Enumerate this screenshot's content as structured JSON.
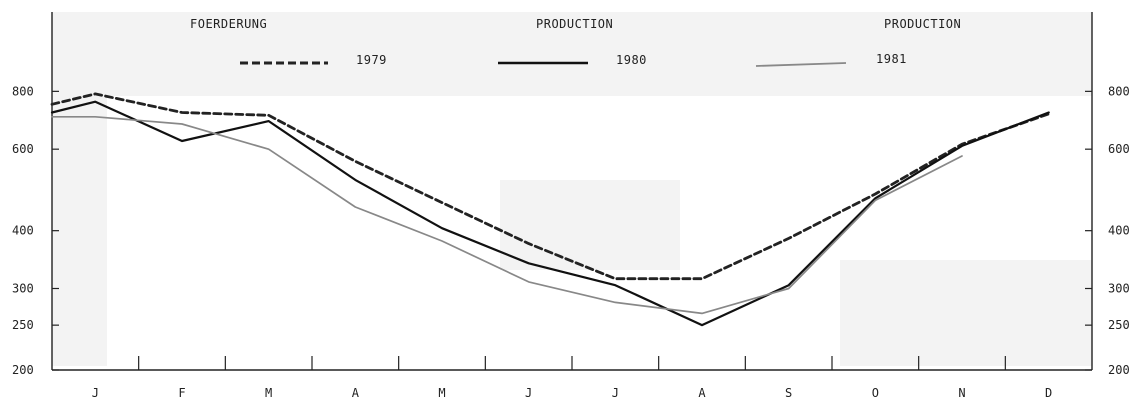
{
  "chart_data": {
    "type": "line",
    "headings": [
      "FOERDERUNG",
      "PRODUCTION",
      "PRODUCTION"
    ],
    "categories": [
      "J",
      "F",
      "M",
      "A",
      "M",
      "J",
      "J",
      "A",
      "S",
      "O",
      "N",
      "D"
    ],
    "y_ticks_left": [
      "800",
      "600",
      "400",
      "300",
      "250",
      "200"
    ],
    "y_ticks_right": [
      "800",
      "600",
      "400",
      "300",
      "250",
      "200"
    ],
    "ylim": [
      200,
      1000
    ],
    "y_scale": "log",
    "grid": false,
    "legend_position": "top",
    "series": [
      {
        "name": "1979",
        "style": "dashed",
        "color": "#222222",
        "x": [
          0,
          0.5,
          1.5,
          2.5,
          3.5,
          4.5,
          5.5,
          6.5,
          7.5,
          8.5,
          9.5,
          10.5,
          11.5
        ],
        "values": [
          750,
          790,
          720,
          710,
          565,
          460,
          375,
          315,
          315,
          385,
          480,
          615,
          715
        ]
      },
      {
        "name": "1980",
        "style": "solid",
        "color": "#111111",
        "x": [
          0,
          0.5,
          1.5,
          2.5,
          3.5,
          4.5,
          5.5,
          6.5,
          7.5,
          8.5,
          9.5,
          10.5,
          11.5
        ],
        "values": [
          720,
          760,
          625,
          690,
          515,
          405,
          340,
          305,
          250,
          305,
          470,
          610,
          720
        ]
      },
      {
        "name": "1981",
        "style": "solid",
        "color": "#888888",
        "x": [
          0,
          0.5,
          1.5,
          2.5,
          3.5,
          4.5,
          5.5,
          6.5,
          7.5,
          8.5,
          9.5,
          10.5
        ],
        "values": [
          705,
          705,
          680,
          600,
          450,
          380,
          310,
          280,
          265,
          300,
          465,
          580
        ]
      }
    ]
  }
}
